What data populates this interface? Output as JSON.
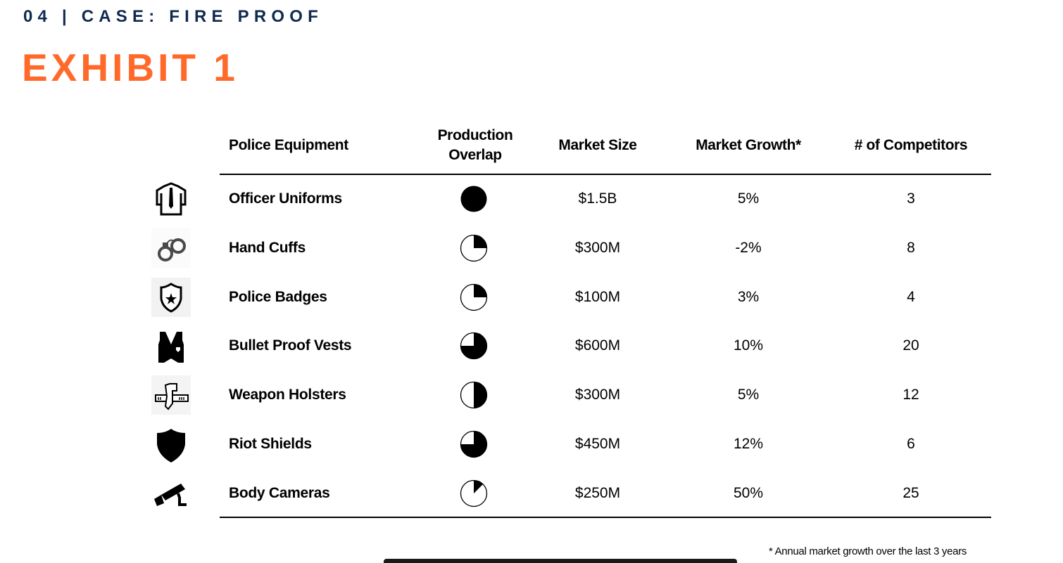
{
  "header": {
    "kicker": "04 | CASE: FIRE PROOF",
    "title": "EXHIBIT 1"
  },
  "table": {
    "columns": [
      "Police Equipment",
      "Production Overlap",
      "Market Size",
      "Market Growth*",
      "# of Competitors"
    ],
    "column_lines": {
      "overlap_1": "Production",
      "overlap_2": "Overlap"
    },
    "rows": [
      {
        "icon": "uniform-icon",
        "name": "Officer Uniforms",
        "overlap": 1.0,
        "size": "$1.5B",
        "growth": "5%",
        "competitors": "3"
      },
      {
        "icon": "handcuffs-icon",
        "name": "Hand Cuffs",
        "overlap": 0.25,
        "size": "$300M",
        "growth": "-2%",
        "competitors": "8"
      },
      {
        "icon": "badge-icon",
        "name": "Police Badges",
        "overlap": 0.25,
        "size": "$100M",
        "growth": "3%",
        "competitors": "4"
      },
      {
        "icon": "vest-icon",
        "name": "Bullet Proof Vests",
        "overlap": 0.75,
        "size": "$600M",
        "growth": "10%",
        "competitors": "20"
      },
      {
        "icon": "holster-icon",
        "name": "Weapon Holsters",
        "overlap": 0.5,
        "size": "$300M",
        "growth": "5%",
        "competitors": "12"
      },
      {
        "icon": "shield-icon",
        "name": "Riot Shields",
        "overlap": 0.75,
        "size": "$450M",
        "growth": "12%",
        "competitors": "6"
      },
      {
        "icon": "camera-icon",
        "name": "Body Cameras",
        "overlap": 0.125,
        "size": "$250M",
        "growth": "50%",
        "competitors": "25"
      }
    ]
  },
  "footnote": "* Annual market growth over  the last 3 years",
  "colors": {
    "kicker": "#0f2a4f",
    "title": "#ff6a2b"
  }
}
